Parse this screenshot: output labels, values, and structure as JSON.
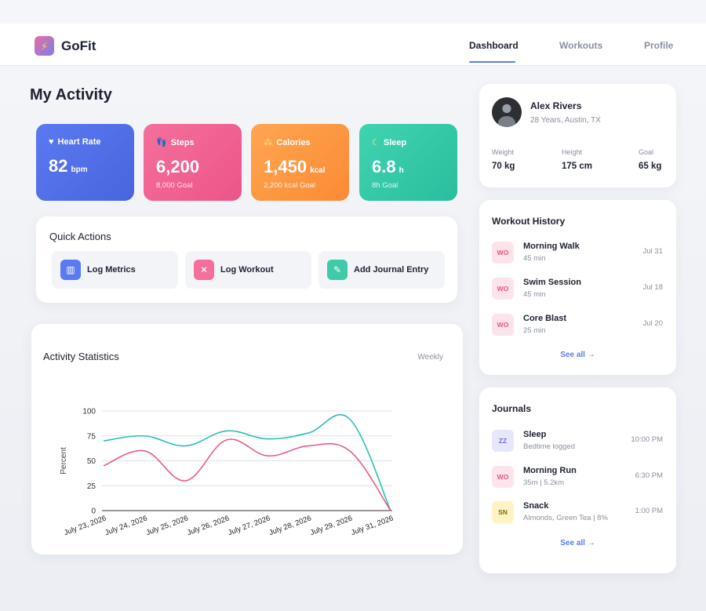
{
  "app": {
    "brand": "GoFit"
  },
  "nav": {
    "tabs": [
      {
        "label": "Dashboard",
        "active": true
      },
      {
        "label": "Workouts"
      },
      {
        "label": "Profile"
      }
    ]
  },
  "page": {
    "title": "My Activity"
  },
  "stats": [
    {
      "label": "Heart Rate",
      "icon": "heart-icon",
      "value": "82",
      "unit": "bpm",
      "goal": ""
    },
    {
      "label": "Steps",
      "icon": "footprint-icon",
      "value": "6,200",
      "unit": "",
      "goal": "8,000 Goal"
    },
    {
      "label": "Calories",
      "icon": "flame-icon",
      "value": "1,450",
      "unit": "kcal",
      "goal": "2,200 kcal Goal"
    },
    {
      "label": "Sleep",
      "icon": "moon-icon",
      "value": "6.8",
      "unit": "h",
      "goal": "8h Goal"
    }
  ],
  "quick_actions": {
    "title": "Quick Actions",
    "items": [
      {
        "label": "Log Metrics",
        "icon": "chart-icon",
        "color": "#5b79f0"
      },
      {
        "label": "Log Workout",
        "icon": "dumbbell-icon",
        "color": "#f56f9c"
      },
      {
        "label": "Add Journal Entry",
        "icon": "notebook-icon",
        "color": "#3fcaa8"
      }
    ]
  },
  "activity": {
    "title": "Activity Statistics",
    "period": "Weekly"
  },
  "chart_data": {
    "type": "line",
    "title": "Activity Statistics",
    "ylabel": "Percent",
    "xlabel": "",
    "ylim": [
      0,
      100
    ],
    "yticks": [
      0,
      25,
      50,
      75,
      100
    ],
    "grid": true,
    "categories": [
      "July 23, 2026",
      "July 24, 2026",
      "July 25, 2026",
      "July 26, 2026",
      "July 27, 2026",
      "July 28, 2026",
      "July 29, 2026",
      "July 31, 2026"
    ],
    "series": [
      {
        "color": "#2bbfb6",
        "values": [
          70,
          75,
          65,
          80,
          72,
          78,
          92,
          0
        ]
      },
      {
        "color": "#ea5a86",
        "values": [
          45,
          60,
          30,
          71,
          55,
          65,
          60,
          0
        ]
      }
    ]
  },
  "profile": {
    "name": "Alex Rivers",
    "subtitle": "28 Years, Austin, TX",
    "metrics": [
      {
        "label": "Weight",
        "value": "70 kg"
      },
      {
        "label": "Height",
        "value": "175 cm"
      },
      {
        "label": "Goal",
        "value": "65 kg"
      }
    ]
  },
  "workout_history": {
    "title": "Workout History",
    "items": [
      {
        "badge": "WO",
        "title": "Morning Walk",
        "sub": "45 min",
        "date": "Jul 31"
      },
      {
        "badge": "WO",
        "title": "Swim Session",
        "sub": "45 min",
        "date": "Jul 18"
      },
      {
        "badge": "WO",
        "title": "Core Blast",
        "sub": "25 min",
        "date": "Jul 20"
      }
    ],
    "see_all": "See all →"
  },
  "journals": {
    "title": "Journals",
    "items": [
      {
        "badge": "ZZ",
        "title": "Sleep",
        "sub": "Bedtime logged",
        "time": "10:00 PM"
      },
      {
        "badge": "WO",
        "title": "Morning Run",
        "sub": "35m | 5.2km",
        "time": "6:30 PM"
      },
      {
        "badge": "SN",
        "title": "Snack",
        "sub": "Almonds, Green Tea | 8%",
        "time": "1:00 PM"
      }
    ],
    "see_all": "See all →"
  }
}
